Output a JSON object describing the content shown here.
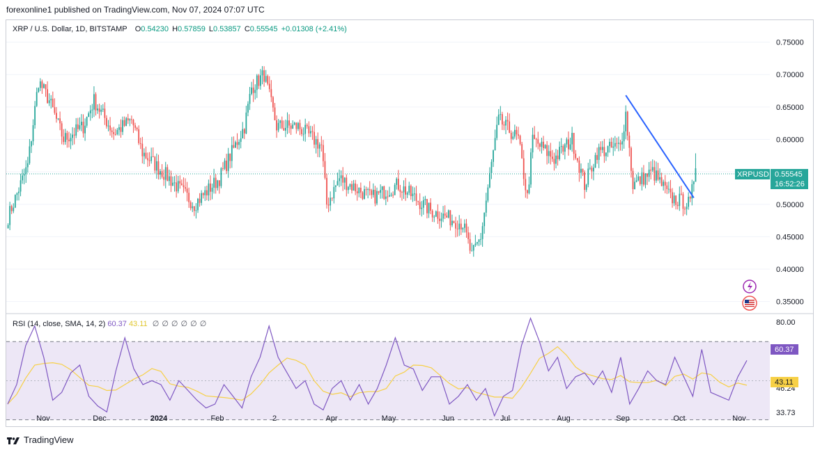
{
  "header": {
    "publish_line": "forexonline1 published on TradingView.com, Nov 07, 2024 07:07 UTC"
  },
  "legend": {
    "symbol": "XRP / U.S. Dollar, 1D, BITSTAMP",
    "o_label": "O",
    "o_value": "0.54230",
    "h_label": "H",
    "h_value": "0.57859",
    "l_label": "L",
    "l_value": "0.53857",
    "c_label": "C",
    "c_value": "0.55545",
    "change": "+0.01308 (+2.41%)"
  },
  "rsi_legend": {
    "label": "RSI (14, close, SMA, 14, 2)",
    "rsi_value": "60.37",
    "sma_value": "43.11",
    "empty_markers": [
      "∅",
      "∅",
      "∅",
      "∅",
      "∅",
      "∅"
    ]
  },
  "price_badge": {
    "symbol": "XRPUSD",
    "price": "0.55545",
    "countdown": "16:52:26"
  },
  "rsi_badges": {
    "rsi": "60.37",
    "sma": "43.11"
  },
  "footer": {
    "brand": "TradingView"
  },
  "colors": {
    "up": "#26a69a",
    "down": "#ef5350",
    "trendline": "#2962ff",
    "rsi_line": "#7e57c2",
    "rsi_sma": "#f7d046",
    "rsi_band": "#ede7f6",
    "badge_bg": "#26a69a"
  },
  "chart_data": [
    {
      "type": "candlestick",
      "title": "XRP / U.S. Dollar, 1D, BITSTAMP",
      "x_tick_labels": [
        "Nov",
        "Dec",
        "2024",
        "Feb",
        "2",
        "Apr",
        "May",
        "Jun",
        "Jul",
        "Aug",
        "Sep",
        "Oct",
        "Nov"
      ],
      "y_tick_labels": [
        "0.75000",
        "0.70000",
        "0.65000",
        "0.60000",
        "0.55000",
        "0.50000",
        "0.45000",
        "0.40000",
        "0.35000"
      ],
      "ylim": [
        0.35,
        0.75
      ],
      "last_price": 0.55545,
      "anchors": [
        {
          "date": "2023-10-20",
          "close": 0.48
        },
        {
          "date": "2023-10-31",
          "close": 0.56
        },
        {
          "date": "2023-11-06",
          "close": 0.69
        },
        {
          "date": "2023-11-12",
          "close": 0.66
        },
        {
          "date": "2023-11-20",
          "close": 0.6
        },
        {
          "date": "2023-12-01",
          "close": 0.62
        },
        {
          "date": "2023-12-07",
          "close": 0.66
        },
        {
          "date": "2023-12-18",
          "close": 0.61
        },
        {
          "date": "2023-12-28",
          "close": 0.63
        },
        {
          "date": "2024-01-03",
          "close": 0.58
        },
        {
          "date": "2024-01-18",
          "close": 0.54
        },
        {
          "date": "2024-02-01",
          "close": 0.5
        },
        {
          "date": "2024-02-15",
          "close": 0.54
        },
        {
          "date": "2024-02-29",
          "close": 0.62
        },
        {
          "date": "2024-03-04",
          "close": 0.68
        },
        {
          "date": "2024-03-11",
          "close": 0.7
        },
        {
          "date": "2024-03-18",
          "close": 0.62
        },
        {
          "date": "2024-03-30",
          "close": 0.62
        },
        {
          "date": "2024-04-12",
          "close": 0.59
        },
        {
          "date": "2024-04-15",
          "close": 0.5
        },
        {
          "date": "2024-04-22",
          "close": 0.54
        },
        {
          "date": "2024-05-10",
          "close": 0.51
        },
        {
          "date": "2024-05-25",
          "close": 0.53
        },
        {
          "date": "2024-06-12",
          "close": 0.49
        },
        {
          "date": "2024-06-30",
          "close": 0.47
        },
        {
          "date": "2024-07-05",
          "close": 0.42
        },
        {
          "date": "2024-07-10",
          "close": 0.45
        },
        {
          "date": "2024-07-17",
          "close": 0.58
        },
        {
          "date": "2024-07-20",
          "close": 0.63
        },
        {
          "date": "2024-07-31",
          "close": 0.6
        },
        {
          "date": "2024-08-05",
          "close": 0.51
        },
        {
          "date": "2024-08-08",
          "close": 0.6
        },
        {
          "date": "2024-08-20",
          "close": 0.57
        },
        {
          "date": "2024-08-30",
          "close": 0.6
        },
        {
          "date": "2024-09-06",
          "close": 0.53
        },
        {
          "date": "2024-09-13",
          "close": 0.58
        },
        {
          "date": "2024-09-26",
          "close": 0.59
        },
        {
          "date": "2024-09-29",
          "close": 0.64
        },
        {
          "date": "2024-10-03",
          "close": 0.53
        },
        {
          "date": "2024-10-14",
          "close": 0.55
        },
        {
          "date": "2024-10-24",
          "close": 0.51
        },
        {
          "date": "2024-11-04",
          "close": 0.5
        },
        {
          "date": "2024-11-06",
          "close": 0.54
        },
        {
          "date": "2024-11-07",
          "close": 0.5555
        }
      ],
      "trendline": [
        {
          "date": "2024-09-29",
          "price": 0.668
        },
        {
          "date": "2024-11-06",
          "price": 0.51
        }
      ]
    },
    {
      "type": "line",
      "title": "RSI (14, close, SMA, 14, 2)",
      "y_tick_labels": [
        "80.00",
        "46.24",
        "33.73"
      ],
      "band": [
        30,
        70
      ],
      "series": [
        {
          "values": [
            38,
            48,
            68,
            78,
            62,
            40,
            44,
            54,
            58,
            42,
            37,
            34,
            55,
            72,
            56,
            48,
            50,
            48,
            40,
            50,
            45,
            40,
            36,
            38,
            48,
            42,
            36,
            52,
            62,
            78,
            62,
            54,
            46,
            50,
            38,
            35,
            46,
            50,
            40,
            48,
            38,
            46,
            58,
            72,
            58,
            56,
            45,
            52,
            52,
            38,
            42,
            48,
            40,
            46,
            32,
            42,
            45,
            68,
            82,
            70,
            55,
            62,
            46,
            52,
            54,
            48,
            55,
            44,
            62,
            38,
            46,
            55,
            50,
            48,
            62,
            52,
            42,
            66,
            44,
            42,
            40,
            52,
            60.37
          ]
        }
      ]
    }
  ]
}
